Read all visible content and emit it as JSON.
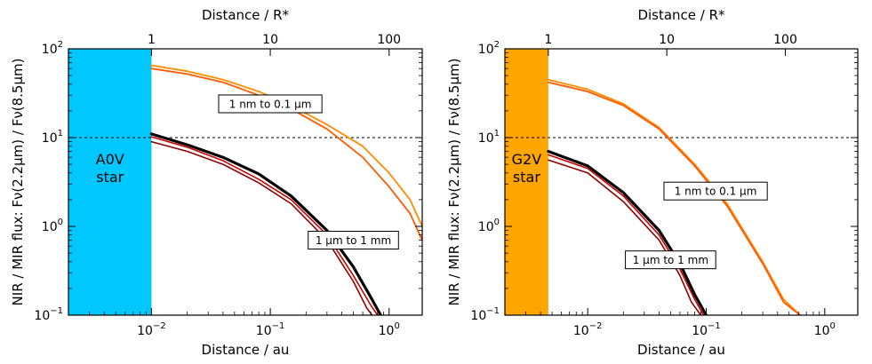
{
  "chart_data": [
    {
      "type": "line",
      "id": "a0v",
      "xlabel": "Distance / au",
      "ylabel": "NIR / MIR flux: Fν(2.2μm) / Fν(8.5μm)",
      "top_xlabel": "Distance / R*",
      "xscale": "log",
      "yscale": "log",
      "xlim": [
        0.002,
        1.9
      ],
      "ylim": [
        0.1,
        100
      ],
      "bottom_ticks": [
        {
          "v": 0.01,
          "base": "10",
          "exp": "−2"
        },
        {
          "v": 0.1,
          "base": "10",
          "exp": "−1"
        },
        {
          "v": 1,
          "base": "10",
          "exp": "0"
        }
      ],
      "left_ticks": [
        {
          "v": 0.1,
          "base": "10",
          "exp": "−1"
        },
        {
          "v": 1,
          "base": "10",
          "exp": "0"
        },
        {
          "v": 10,
          "base": "10",
          "exp": "1"
        },
        {
          "v": 100,
          "base": "10",
          "exp": "2"
        }
      ],
      "top_ticks": [
        {
          "v": 0.01,
          "label": "1"
        },
        {
          "v": 0.1,
          "label": "10"
        },
        {
          "v": 1,
          "label": "100"
        }
      ],
      "ref_line": 10,
      "star": {
        "label": "A0V\nstar",
        "edge": 0.01,
        "color": "#00c8ff"
      },
      "annotations": [
        {
          "text": "1 nm to 0.1 μm",
          "x": 0.1,
          "y": 24
        },
        {
          "text": "1 μm to 1 mm",
          "x": 0.5,
          "y": 0.7
        }
      ],
      "series": [
        {
          "name": "1 nm to 0.1 μm (a)",
          "color": "#ff8c00",
          "width": 1.8,
          "x": [
            0.01,
            0.02,
            0.04,
            0.08,
            0.15,
            0.3,
            0.6,
            1.0,
            1.5,
            1.9
          ],
          "y": [
            65,
            56,
            45,
            33,
            23,
            14,
            8,
            4,
            2,
            1.0
          ]
        },
        {
          "name": "1 nm to 0.1 μm (b)",
          "color": "#ff5a00",
          "width": 1.8,
          "x": [
            0.01,
            0.02,
            0.04,
            0.08,
            0.15,
            0.3,
            0.6,
            1.0,
            1.5,
            1.9
          ],
          "y": [
            60,
            52,
            42,
            30,
            21,
            12.5,
            6,
            2.8,
            1.4,
            0.7
          ]
        },
        {
          "name": "1 μm to 1 mm (black)",
          "color": "#000000",
          "width": 3.2,
          "x": [
            0.01,
            0.02,
            0.04,
            0.08,
            0.15,
            0.3,
            0.5,
            0.7,
            0.85
          ],
          "y": [
            11,
            8.3,
            6,
            3.9,
            2.2,
            0.9,
            0.35,
            0.16,
            0.1
          ]
        },
        {
          "name": "1 μm to 1 mm (red)",
          "color": "#cc0000",
          "width": 1.6,
          "x": [
            0.01,
            0.02,
            0.04,
            0.08,
            0.15,
            0.3,
            0.5,
            0.7,
            0.8
          ],
          "y": [
            10.2,
            7.8,
            5.5,
            3.4,
            2.0,
            0.8,
            0.28,
            0.13,
            0.1
          ]
        },
        {
          "name": "1 μm to 1 mm (darkred)",
          "color": "#8b0000",
          "width": 1.6,
          "x": [
            0.01,
            0.02,
            0.04,
            0.08,
            0.15,
            0.3,
            0.5,
            0.65,
            0.72
          ],
          "y": [
            9,
            7,
            5.0,
            3.1,
            1.8,
            0.7,
            0.24,
            0.12,
            0.1
          ]
        }
      ]
    },
    {
      "type": "line",
      "id": "g2v",
      "xlabel": "Distance / au",
      "ylabel": "NIR / MIR flux: Fν(2.2μm) / Fν(8.5μm)",
      "top_xlabel": "Distance / R*",
      "xscale": "log",
      "yscale": "log",
      "xlim": [
        0.002,
        1.9
      ],
      "ylim": [
        0.1,
        100
      ],
      "bottom_ticks": [
        {
          "v": 0.01,
          "base": "10",
          "exp": "−2"
        },
        {
          "v": 0.1,
          "base": "10",
          "exp": "−1"
        },
        {
          "v": 1,
          "base": "10",
          "exp": "0"
        }
      ],
      "left_ticks": [
        {
          "v": 0.1,
          "base": "10",
          "exp": "−1"
        },
        {
          "v": 1,
          "base": "10",
          "exp": "0"
        },
        {
          "v": 10,
          "base": "10",
          "exp": "1"
        },
        {
          "v": 100,
          "base": "10",
          "exp": "2"
        }
      ],
      "top_ticks": [
        {
          "v": 0.00465,
          "label": "1"
        },
        {
          "v": 0.0465,
          "label": "10"
        },
        {
          "v": 0.465,
          "label": "100"
        }
      ],
      "ref_line": 10,
      "star": {
        "label": "G2V\nstar",
        "edge": 0.00465,
        "color": "#ffa500"
      },
      "annotations": [
        {
          "text": "1 nm to 0.1 μm",
          "x": 0.12,
          "y": 2.5
        },
        {
          "text": "1 μm to 1 mm",
          "x": 0.05,
          "y": 0.42
        }
      ],
      "series": [
        {
          "name": "1 nm to 0.1 μm (a)",
          "color": "#ff8c00",
          "width": 1.8,
          "x": [
            0.00465,
            0.01,
            0.02,
            0.04,
            0.08,
            0.15,
            0.3,
            0.45,
            0.62
          ],
          "y": [
            45,
            35,
            24,
            13,
            5,
            1.8,
            0.4,
            0.15,
            0.1
          ]
        },
        {
          "name": "1 nm to 0.1 μm (b)",
          "color": "#ff5a00",
          "width": 1.8,
          "x": [
            0.00465,
            0.01,
            0.02,
            0.04,
            0.08,
            0.15,
            0.3,
            0.45,
            0.62
          ],
          "y": [
            42,
            33,
            23,
            12.5,
            4.8,
            1.7,
            0.38,
            0.14,
            0.1
          ]
        },
        {
          "name": "1 μm to 1 mm (black)",
          "color": "#000000",
          "width": 3.2,
          "x": [
            0.00465,
            0.01,
            0.02,
            0.04,
            0.06,
            0.08,
            0.1
          ],
          "y": [
            7,
            4.8,
            2.4,
            0.9,
            0.38,
            0.17,
            0.1
          ]
        },
        {
          "name": "1 μm to 1 mm (red)",
          "color": "#cc0000",
          "width": 1.6,
          "x": [
            0.00465,
            0.01,
            0.02,
            0.04,
            0.06,
            0.08,
            0.095
          ],
          "y": [
            6.4,
            4.5,
            2.2,
            0.8,
            0.33,
            0.15,
            0.1
          ]
        },
        {
          "name": "1 μm to 1 mm (darkred)",
          "color": "#8b0000",
          "width": 1.6,
          "x": [
            0.00465,
            0.01,
            0.02,
            0.04,
            0.06,
            0.075,
            0.09
          ],
          "y": [
            5.6,
            4.0,
            1.9,
            0.7,
            0.28,
            0.14,
            0.1
          ]
        }
      ]
    }
  ]
}
